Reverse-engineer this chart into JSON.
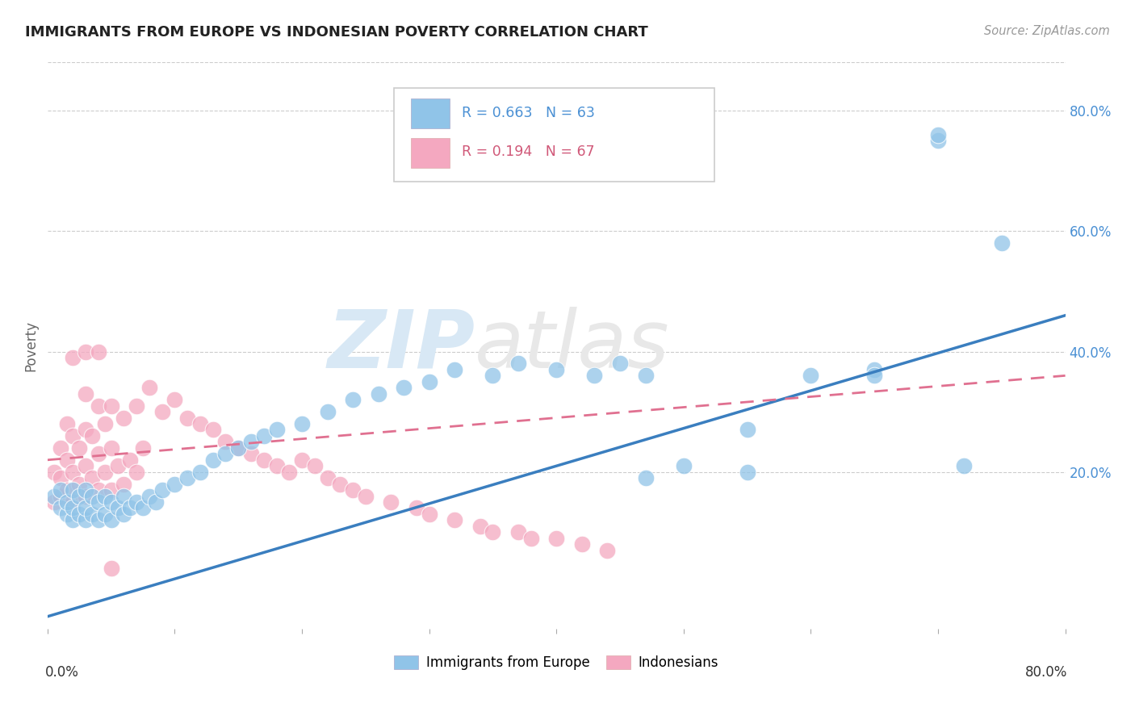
{
  "title": "IMMIGRANTS FROM EUROPE VS INDONESIAN POVERTY CORRELATION CHART",
  "source": "Source: ZipAtlas.com",
  "ylabel": "Poverty",
  "ytick_labels": [
    "20.0%",
    "40.0%",
    "60.0%",
    "80.0%"
  ],
  "ytick_values": [
    0.2,
    0.4,
    0.6,
    0.8
  ],
  "xlim": [
    0.0,
    0.8
  ],
  "ylim": [
    -0.06,
    0.88
  ],
  "blue_R": 0.663,
  "blue_N": 63,
  "pink_R": 0.194,
  "pink_N": 67,
  "blue_color": "#90c4e8",
  "pink_color": "#f4a8c0",
  "blue_line_color": "#3a7ebf",
  "pink_line_color": "#e07090",
  "legend_label_blue": "Immigrants from Europe",
  "legend_label_pink": "Indonesians",
  "watermark_zip": "ZIP",
  "watermark_atlas": "atlas",
  "background_color": "#ffffff",
  "blue_x": [
    0.005,
    0.01,
    0.01,
    0.015,
    0.015,
    0.02,
    0.02,
    0.02,
    0.025,
    0.025,
    0.03,
    0.03,
    0.03,
    0.035,
    0.035,
    0.04,
    0.04,
    0.045,
    0.045,
    0.05,
    0.05,
    0.055,
    0.06,
    0.06,
    0.065,
    0.07,
    0.075,
    0.08,
    0.085,
    0.09,
    0.1,
    0.11,
    0.12,
    0.13,
    0.14,
    0.15,
    0.16,
    0.17,
    0.18,
    0.2,
    0.22,
    0.24,
    0.26,
    0.28,
    0.3,
    0.32,
    0.35,
    0.37,
    0.4,
    0.43,
    0.45,
    0.47,
    0.5,
    0.55,
    0.6,
    0.65,
    0.7,
    0.72,
    0.75,
    0.47,
    0.55,
    0.65,
    0.7
  ],
  "blue_y": [
    0.16,
    0.14,
    0.17,
    0.13,
    0.15,
    0.12,
    0.14,
    0.17,
    0.13,
    0.16,
    0.12,
    0.14,
    0.17,
    0.13,
    0.16,
    0.12,
    0.15,
    0.13,
    0.16,
    0.12,
    0.15,
    0.14,
    0.13,
    0.16,
    0.14,
    0.15,
    0.14,
    0.16,
    0.15,
    0.17,
    0.18,
    0.19,
    0.2,
    0.22,
    0.23,
    0.24,
    0.25,
    0.26,
    0.27,
    0.28,
    0.3,
    0.32,
    0.33,
    0.34,
    0.35,
    0.37,
    0.36,
    0.38,
    0.37,
    0.36,
    0.38,
    0.19,
    0.21,
    0.27,
    0.36,
    0.37,
    0.75,
    0.21,
    0.58,
    0.36,
    0.2,
    0.36,
    0.76
  ],
  "pink_x": [
    0.005,
    0.005,
    0.01,
    0.01,
    0.01,
    0.015,
    0.015,
    0.015,
    0.02,
    0.02,
    0.02,
    0.025,
    0.025,
    0.03,
    0.03,
    0.03,
    0.03,
    0.035,
    0.035,
    0.04,
    0.04,
    0.04,
    0.045,
    0.045,
    0.05,
    0.05,
    0.05,
    0.055,
    0.06,
    0.06,
    0.065,
    0.07,
    0.07,
    0.075,
    0.08,
    0.09,
    0.1,
    0.11,
    0.12,
    0.13,
    0.14,
    0.15,
    0.16,
    0.17,
    0.18,
    0.19,
    0.2,
    0.21,
    0.22,
    0.23,
    0.24,
    0.25,
    0.27,
    0.29,
    0.3,
    0.32,
    0.34,
    0.35,
    0.37,
    0.38,
    0.4,
    0.42,
    0.44,
    0.02,
    0.03,
    0.04,
    0.05
  ],
  "pink_y": [
    0.15,
    0.2,
    0.16,
    0.19,
    0.24,
    0.17,
    0.22,
    0.28,
    0.15,
    0.2,
    0.26,
    0.18,
    0.24,
    0.16,
    0.21,
    0.27,
    0.33,
    0.19,
    0.26,
    0.17,
    0.23,
    0.31,
    0.2,
    0.28,
    0.17,
    0.24,
    0.31,
    0.21,
    0.18,
    0.29,
    0.22,
    0.2,
    0.31,
    0.24,
    0.34,
    0.3,
    0.32,
    0.29,
    0.28,
    0.27,
    0.25,
    0.24,
    0.23,
    0.22,
    0.21,
    0.2,
    0.22,
    0.21,
    0.19,
    0.18,
    0.17,
    0.16,
    0.15,
    0.14,
    0.13,
    0.12,
    0.11,
    0.1,
    0.1,
    0.09,
    0.09,
    0.08,
    0.07,
    0.39,
    0.4,
    0.4,
    0.04
  ],
  "blue_line_x": [
    0.0,
    0.8
  ],
  "blue_line_y": [
    -0.04,
    0.46
  ],
  "pink_line_x": [
    0.0,
    0.8
  ],
  "pink_line_y": [
    0.22,
    0.36
  ]
}
